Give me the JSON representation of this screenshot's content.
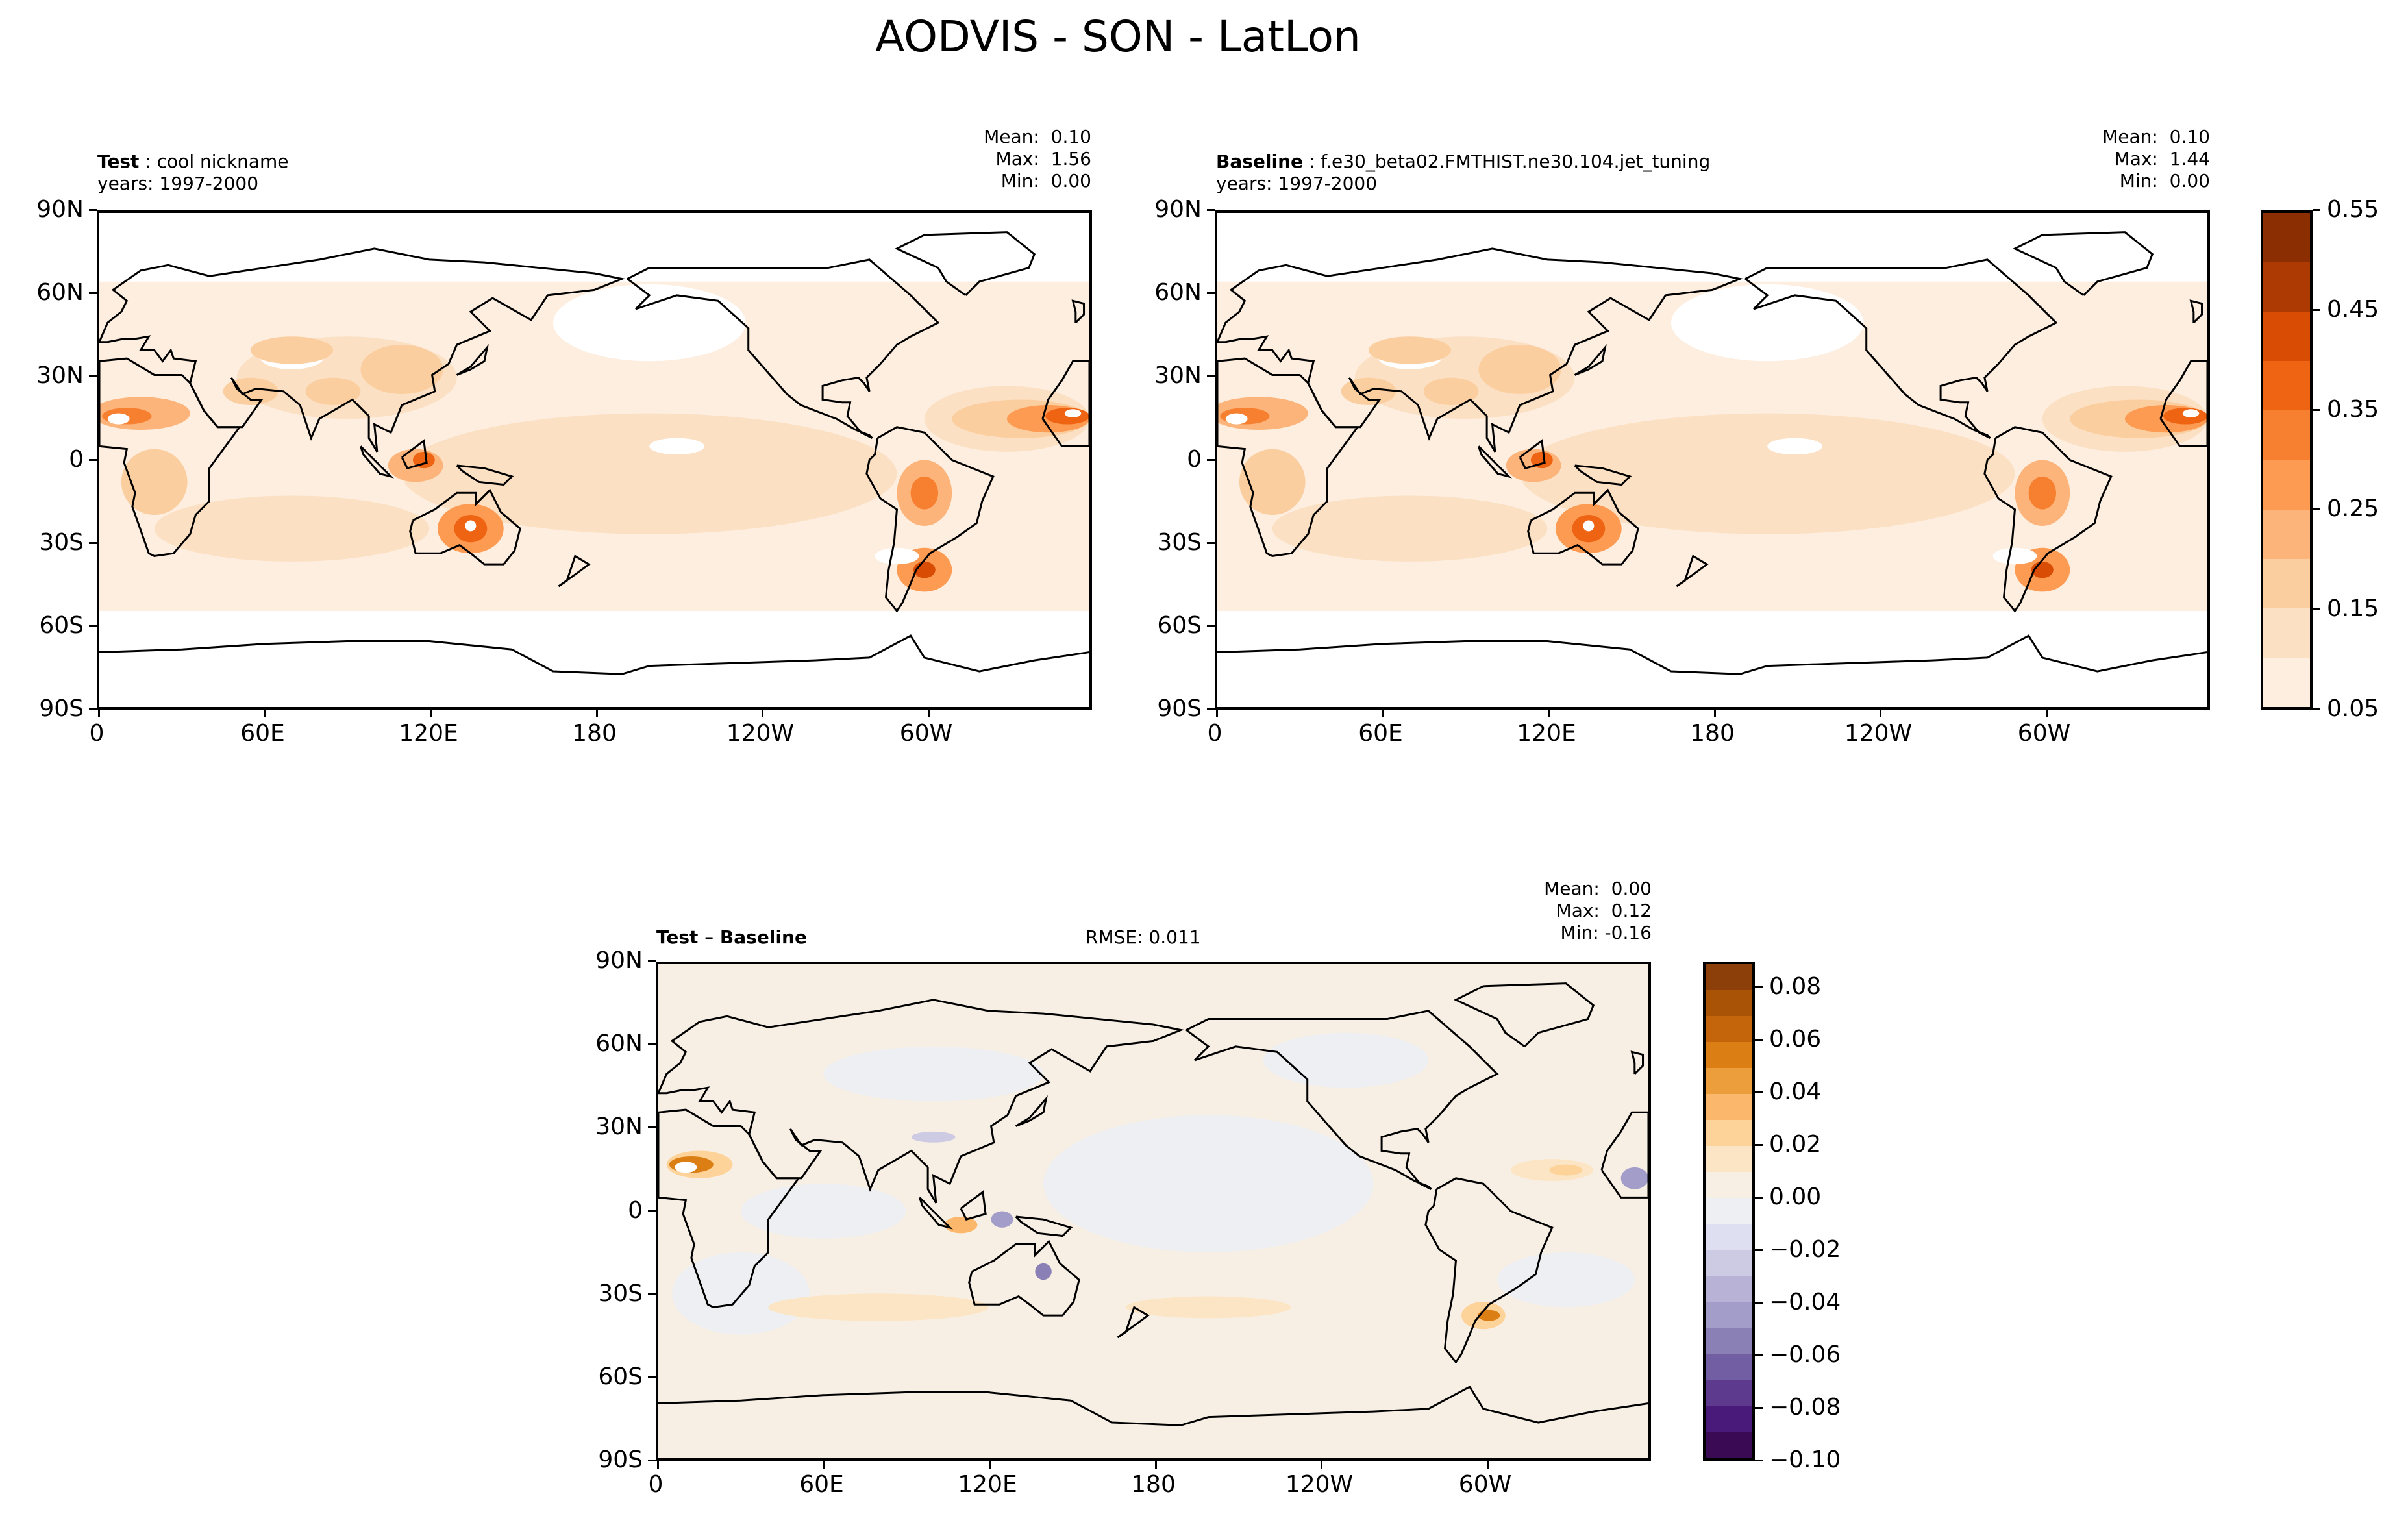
{
  "title": "AODVIS - SON - LatLon",
  "panels": {
    "test": {
      "label": "Test",
      "sep": " : ",
      "name": "cool nickname",
      "years": "years: 1997-2000",
      "mean": "Mean:  0.10",
      "max": "Max:  1.56",
      "min": "Min:  0.00"
    },
    "baseline": {
      "label": "Baseline",
      "sep": " : ",
      "name": "f.e30_beta02.FMTHIST.ne30.104.jet_tuning",
      "years": "years: 1997-2000",
      "mean": "Mean:  0.10",
      "max": "Max:  1.44",
      "min": "Min:  0.00"
    },
    "diff": {
      "label": "Test – Baseline",
      "rmse": "RMSE: 0.011",
      "mean": "Mean:  0.00",
      "max": "Max:  0.12",
      "min": "Min: -0.16"
    }
  },
  "chart_data": {
    "type": "heatmap",
    "title": "AODVIS - SON - LatLon",
    "x_ticks": [
      "0",
      "60E",
      "120E",
      "180",
      "120W",
      "60W"
    ],
    "x_tick_lons": [
      0,
      60,
      120,
      180,
      240,
      300
    ],
    "y_ticks": [
      "90N",
      "60N",
      "30N",
      "0",
      "30S",
      "60S",
      "90S"
    ],
    "y_tick_lats": [
      90,
      60,
      30,
      0,
      -30,
      -60,
      -90
    ],
    "xlim": [
      0,
      360
    ],
    "ylim": [
      -90,
      90
    ],
    "colorbar_main": {
      "levels": [
        0.05,
        0.1,
        0.15,
        0.2,
        0.25,
        0.3,
        0.35,
        0.4,
        0.45,
        0.5,
        0.55
      ],
      "tick_labels": [
        "0.05",
        "0.15",
        "0.25",
        "0.35",
        "0.45",
        "0.55"
      ],
      "tick_values": [
        0.05,
        0.15,
        0.25,
        0.35,
        0.45,
        0.55
      ],
      "colors": [
        "#fdeee0",
        "#fce0c4",
        "#fbcea0",
        "#fcb47a",
        "#fd9b53",
        "#f77f30",
        "#ef6413",
        "#d84c04",
        "#ad3a03",
        "#8b2e02"
      ]
    },
    "colorbar_diff": {
      "levels": [
        -0.1,
        0.09
      ],
      "tick_labels": [
        "0.08",
        "0.06",
        "0.04",
        "0.02",
        "0.00",
        "−0.02",
        "−0.04",
        "−0.06",
        "−0.08",
        "−0.10"
      ],
      "tick_values": [
        0.08,
        0.06,
        0.04,
        0.02,
        0.0,
        -0.02,
        -0.04,
        -0.06,
        -0.08,
        -0.1
      ],
      "colors": [
        "#8c3f08",
        "#a85305",
        "#c4650c",
        "#db7f15",
        "#ec9e3d",
        "#fbb76b",
        "#fdd39a",
        "#fce5c4",
        "#f8efe4",
        "#eeeff2",
        "#dedff0",
        "#cdcbe3",
        "#b8b3d6",
        "#a39dc9",
        "#8a80b6",
        "#725ea3",
        "#5e3a8f",
        "#4a1a7a",
        "#3a0a55"
      ]
    }
  }
}
